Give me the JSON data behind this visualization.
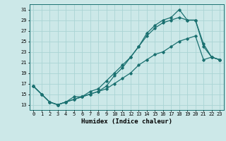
{
  "xlabel": "Humidex (Indice chaleur)",
  "background_color": "#cce8e8",
  "line_color": "#1a7070",
  "grid_color": "#aad4d4",
  "xlim": [
    -0.5,
    23.5
  ],
  "ylim": [
    12.0,
    32.0
  ],
  "yticks": [
    13,
    15,
    17,
    19,
    21,
    23,
    25,
    27,
    29,
    31
  ],
  "xticks": [
    0,
    1,
    2,
    3,
    4,
    5,
    6,
    7,
    8,
    9,
    10,
    11,
    12,
    13,
    14,
    15,
    16,
    17,
    18,
    19,
    20,
    21,
    22,
    23
  ],
  "line1_x": [
    0,
    1,
    2,
    3,
    4,
    5,
    6,
    7,
    8,
    9,
    10,
    11,
    12,
    13,
    14,
    15,
    16,
    17,
    18,
    19,
    20,
    21,
    22,
    23
  ],
  "line1_y": [
    16.5,
    15.0,
    13.5,
    13.0,
    13.5,
    14.5,
    14.5,
    15.5,
    16.0,
    17.5,
    19.0,
    20.5,
    22.0,
    24.0,
    26.5,
    28.0,
    29.0,
    29.5,
    31.0,
    29.0,
    29.0,
    24.5,
    22.0,
    21.5
  ],
  "line2_x": [
    0,
    1,
    2,
    3,
    4,
    5,
    6,
    7,
    8,
    9,
    10,
    11,
    12,
    13,
    14,
    15,
    16,
    17,
    18,
    19,
    20,
    21,
    22,
    23
  ],
  "line2_y": [
    16.5,
    15.0,
    13.5,
    13.0,
    13.5,
    14.0,
    14.5,
    15.0,
    15.5,
    16.5,
    18.5,
    20.0,
    22.0,
    24.0,
    26.0,
    27.5,
    28.5,
    29.0,
    29.5,
    29.0,
    29.0,
    24.0,
    22.0,
    21.5
  ],
  "line3_x": [
    0,
    1,
    2,
    3,
    4,
    5,
    6,
    7,
    8,
    9,
    10,
    11,
    12,
    13,
    14,
    15,
    16,
    17,
    18,
    19,
    20,
    21,
    22,
    23
  ],
  "line3_y": [
    16.5,
    15.0,
    13.5,
    13.0,
    13.5,
    14.0,
    14.5,
    15.0,
    15.5,
    16.0,
    17.0,
    18.0,
    19.0,
    20.5,
    21.5,
    22.5,
    23.0,
    24.0,
    25.0,
    25.5,
    26.0,
    21.5,
    22.0,
    21.5
  ],
  "ylabel_fontsize": 5.5,
  "xlabel_fontsize": 6.5,
  "tick_fontsize": 5.0
}
